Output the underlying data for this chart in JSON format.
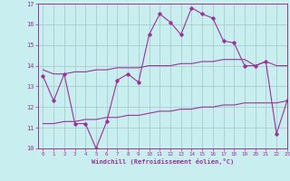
{
  "title": "",
  "xlabel": "Windchill (Refroidissement éolien,°C)",
  "xlim": [
    -0.5,
    23
  ],
  "ylim": [
    10,
    17
  ],
  "yticks": [
    10,
    11,
    12,
    13,
    14,
    15,
    16,
    17
  ],
  "xticks": [
    0,
    1,
    2,
    3,
    4,
    5,
    6,
    7,
    8,
    9,
    10,
    11,
    12,
    13,
    14,
    15,
    16,
    17,
    18,
    19,
    20,
    21,
    22,
    23
  ],
  "bg_color": "#c8eef0",
  "grid_color": "#aacccc",
  "line_color": "#993399",
  "curve1_x": [
    0,
    1,
    2,
    3,
    4,
    5,
    6,
    7,
    8,
    9,
    10,
    11,
    12,
    13,
    14,
    15,
    16,
    17,
    18,
    19,
    20,
    21,
    22,
    23
  ],
  "curve1_y": [
    13.5,
    12.3,
    13.6,
    11.2,
    11.2,
    10.0,
    11.3,
    13.3,
    13.6,
    13.2,
    15.5,
    16.5,
    16.1,
    15.5,
    16.8,
    16.5,
    16.3,
    15.2,
    15.1,
    14.0,
    14.0,
    14.2,
    10.7,
    12.3
  ],
  "curve2_x": [
    0,
    1,
    2,
    3,
    4,
    5,
    6,
    7,
    8,
    9,
    10,
    11,
    12,
    13,
    14,
    15,
    16,
    17,
    18,
    19,
    20,
    21,
    22,
    23
  ],
  "curve2_y": [
    13.8,
    13.6,
    13.6,
    13.7,
    13.7,
    13.8,
    13.8,
    13.9,
    13.9,
    13.9,
    14.0,
    14.0,
    14.0,
    14.1,
    14.1,
    14.2,
    14.2,
    14.3,
    14.3,
    14.3,
    14.0,
    14.2,
    14.0,
    14.0
  ],
  "curve3_x": [
    0,
    1,
    2,
    3,
    4,
    5,
    6,
    7,
    8,
    9,
    10,
    11,
    12,
    13,
    14,
    15,
    16,
    17,
    18,
    19,
    20,
    21,
    22,
    23
  ],
  "curve3_y": [
    11.2,
    11.2,
    11.3,
    11.3,
    11.4,
    11.4,
    11.5,
    11.5,
    11.6,
    11.6,
    11.7,
    11.8,
    11.8,
    11.9,
    11.9,
    12.0,
    12.0,
    12.1,
    12.1,
    12.2,
    12.2,
    12.2,
    12.2,
    12.3
  ]
}
